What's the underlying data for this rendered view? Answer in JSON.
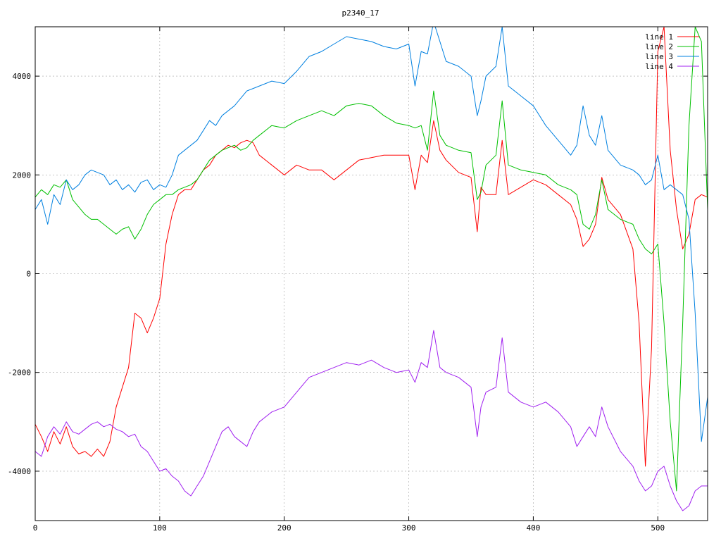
{
  "chart_data": {
    "type": "line",
    "title": "p2340_17",
    "xlabel": "",
    "ylabel": "",
    "xlim": [
      0,
      540
    ],
    "ylim": [
      -5000,
      5000
    ],
    "xticks": [
      0,
      100,
      200,
      300,
      400,
      500
    ],
    "yticks": [
      -4000,
      -2000,
      0,
      2000,
      4000
    ],
    "xtick_labels": [
      "0",
      "100",
      "200",
      "300",
      "400",
      "500"
    ],
    "ytick_labels": [
      "-4000",
      "-2000",
      "0",
      "2000",
      "4000"
    ],
    "grid": true,
    "legend_position": "top-right",
    "series": [
      {
        "name": "line 1",
        "color": "#ff0000",
        "x": [
          0,
          5,
          10,
          15,
          20,
          25,
          30,
          35,
          40,
          45,
          50,
          55,
          60,
          65,
          70,
          75,
          80,
          85,
          90,
          95,
          100,
          105,
          110,
          115,
          120,
          125,
          130,
          135,
          140,
          145,
          150,
          155,
          160,
          165,
          170,
          175,
          180,
          190,
          200,
          210,
          220,
          230,
          240,
          250,
          260,
          270,
          280,
          290,
          300,
          305,
          310,
          315,
          320,
          325,
          330,
          340,
          350,
          355,
          358,
          362,
          370,
          375,
          380,
          390,
          400,
          410,
          420,
          430,
          435,
          440,
          445,
          450,
          455,
          460,
          470,
          480,
          485,
          490,
          495,
          500,
          505,
          510,
          515,
          520,
          525,
          530,
          535,
          540
        ],
        "y": [
          -3050,
          -3300,
          -3600,
          -3200,
          -3450,
          -3100,
          -3500,
          -3650,
          -3600,
          -3700,
          -3550,
          -3700,
          -3400,
          -2700,
          -2300,
          -1900,
          -800,
          -900,
          -1200,
          -900,
          -500,
          600,
          1200,
          1600,
          1700,
          1700,
          1900,
          2100,
          2200,
          2400,
          2500,
          2600,
          2550,
          2650,
          2700,
          2650,
          2400,
          2200,
          2000,
          2200,
          2100,
          2100,
          1900,
          2100,
          2300,
          2350,
          2400,
          2400,
          2400,
          1700,
          2400,
          2250,
          3100,
          2500,
          2300,
          2050,
          1950,
          850,
          1750,
          1600,
          1600,
          2700,
          1600,
          1750,
          1900,
          1800,
          1600,
          1400,
          1100,
          550,
          700,
          1000,
          1950,
          1500,
          1200,
          500,
          -1000,
          -3900,
          -1500,
          4500,
          5000,
          2500,
          1300,
          500,
          800,
          1500,
          1600,
          1550
        ]
      },
      {
        "name": "line 2",
        "color": "#00c000",
        "x": [
          0,
          5,
          10,
          15,
          20,
          25,
          30,
          35,
          40,
          45,
          50,
          55,
          60,
          65,
          70,
          75,
          80,
          85,
          90,
          95,
          100,
          105,
          110,
          115,
          120,
          125,
          130,
          135,
          140,
          145,
          150,
          155,
          160,
          165,
          170,
          175,
          180,
          190,
          200,
          210,
          220,
          230,
          240,
          250,
          260,
          270,
          280,
          290,
          300,
          305,
          310,
          315,
          320,
          325,
          330,
          340,
          350,
          355,
          358,
          362,
          370,
          375,
          380,
          390,
          400,
          410,
          420,
          430,
          435,
          440,
          445,
          450,
          455,
          460,
          470,
          480,
          485,
          490,
          495,
          500,
          505,
          510,
          515,
          520,
          525,
          530,
          535,
          540
        ],
        "y": [
          1550,
          1700,
          1600,
          1800,
          1750,
          1900,
          1500,
          1350,
          1200,
          1100,
          1100,
          1000,
          900,
          800,
          900,
          950,
          700,
          900,
          1200,
          1400,
          1500,
          1600,
          1600,
          1700,
          1750,
          1800,
          1900,
          2100,
          2300,
          2400,
          2500,
          2550,
          2600,
          2500,
          2550,
          2700,
          2800,
          3000,
          2950,
          3100,
          3200,
          3300,
          3200,
          3400,
          3450,
          3400,
          3200,
          3050,
          3000,
          2950,
          3000,
          2500,
          3700,
          2800,
          2600,
          2500,
          2450,
          1500,
          1650,
          2200,
          2400,
          3500,
          2200,
          2100,
          2050,
          2000,
          1800,
          1700,
          1600,
          1000,
          900,
          1200,
          1900,
          1300,
          1100,
          1000,
          700,
          500,
          400,
          600,
          -1000,
          -3000,
          -4400,
          -1000,
          3000,
          5000,
          4700,
          1300
        ]
      },
      {
        "name": "line 3",
        "color": "#0080e0",
        "x": [
          0,
          5,
          10,
          15,
          20,
          25,
          30,
          35,
          40,
          45,
          50,
          55,
          60,
          65,
          70,
          75,
          80,
          85,
          90,
          95,
          100,
          105,
          110,
          115,
          120,
          125,
          130,
          135,
          140,
          145,
          150,
          155,
          160,
          165,
          170,
          175,
          180,
          190,
          200,
          210,
          220,
          230,
          240,
          250,
          260,
          270,
          280,
          290,
          300,
          305,
          310,
          315,
          320,
          325,
          330,
          340,
          350,
          355,
          358,
          362,
          370,
          375,
          380,
          390,
          400,
          410,
          420,
          430,
          435,
          440,
          445,
          450,
          455,
          460,
          470,
          480,
          485,
          490,
          495,
          500,
          505,
          510,
          515,
          520,
          525,
          530,
          535,
          540
        ],
        "y": [
          1300,
          1500,
          1000,
          1600,
          1400,
          1900,
          1700,
          1800,
          2000,
          2100,
          2050,
          2000,
          1800,
          1900,
          1700,
          1800,
          1650,
          1850,
          1900,
          1700,
          1800,
          1750,
          2000,
          2400,
          2500,
          2600,
          2700,
          2900,
          3100,
          3000,
          3200,
          3300,
          3400,
          3550,
          3700,
          3750,
          3800,
          3900,
          3850,
          4100,
          4400,
          4500,
          4650,
          4800,
          4750,
          4700,
          4600,
          4550,
          4650,
          3800,
          4500,
          4450,
          5100,
          4700,
          4300,
          4200,
          4000,
          3200,
          3500,
          4000,
          4200,
          5000,
          3800,
          3600,
          3400,
          3000,
          2700,
          2400,
          2600,
          3400,
          2800,
          2600,
          3200,
          2500,
          2200,
          2100,
          2000,
          1800,
          1900,
          2400,
          1700,
          1800,
          1700,
          1600,
          1100,
          -800,
          -3400,
          -2500
        ]
      },
      {
        "name": "line 4",
        "color": "#a020f0",
        "x": [
          0,
          5,
          10,
          15,
          20,
          25,
          30,
          35,
          40,
          45,
          50,
          55,
          60,
          65,
          70,
          75,
          80,
          85,
          90,
          95,
          100,
          105,
          110,
          115,
          120,
          125,
          130,
          135,
          140,
          145,
          150,
          155,
          160,
          165,
          170,
          175,
          180,
          190,
          200,
          210,
          220,
          230,
          240,
          250,
          260,
          270,
          280,
          290,
          300,
          305,
          310,
          315,
          320,
          325,
          330,
          340,
          350,
          355,
          358,
          362,
          370,
          375,
          380,
          390,
          400,
          410,
          420,
          430,
          435,
          440,
          445,
          450,
          455,
          460,
          470,
          480,
          485,
          490,
          495,
          500,
          505,
          510,
          515,
          520,
          525,
          530,
          535,
          540
        ],
        "y": [
          -3600,
          -3700,
          -3300,
          -3100,
          -3250,
          -3000,
          -3200,
          -3250,
          -3150,
          -3050,
          -3000,
          -3100,
          -3050,
          -3150,
          -3200,
          -3300,
          -3250,
          -3500,
          -3600,
          -3800,
          -4000,
          -3950,
          -4100,
          -4200,
          -4400,
          -4500,
          -4300,
          -4100,
          -3800,
          -3500,
          -3200,
          -3100,
          -3300,
          -3400,
          -3500,
          -3200,
          -3000,
          -2800,
          -2700,
          -2400,
          -2100,
          -2000,
          -1900,
          -1800,
          -1850,
          -1750,
          -1900,
          -2000,
          -1950,
          -2200,
          -1800,
          -1900,
          -1150,
          -1900,
          -2000,
          -2100,
          -2300,
          -3300,
          -2700,
          -2400,
          -2300,
          -1300,
          -2400,
          -2600,
          -2700,
          -2600,
          -2800,
          -3100,
          -3500,
          -3300,
          -3100,
          -3300,
          -2700,
          -3100,
          -3600,
          -3900,
          -4200,
          -4400,
          -4300,
          -4000,
          -3900,
          -4300,
          -4600,
          -4800,
          -4700,
          -4400,
          -4300,
          -4300
        ]
      }
    ]
  }
}
